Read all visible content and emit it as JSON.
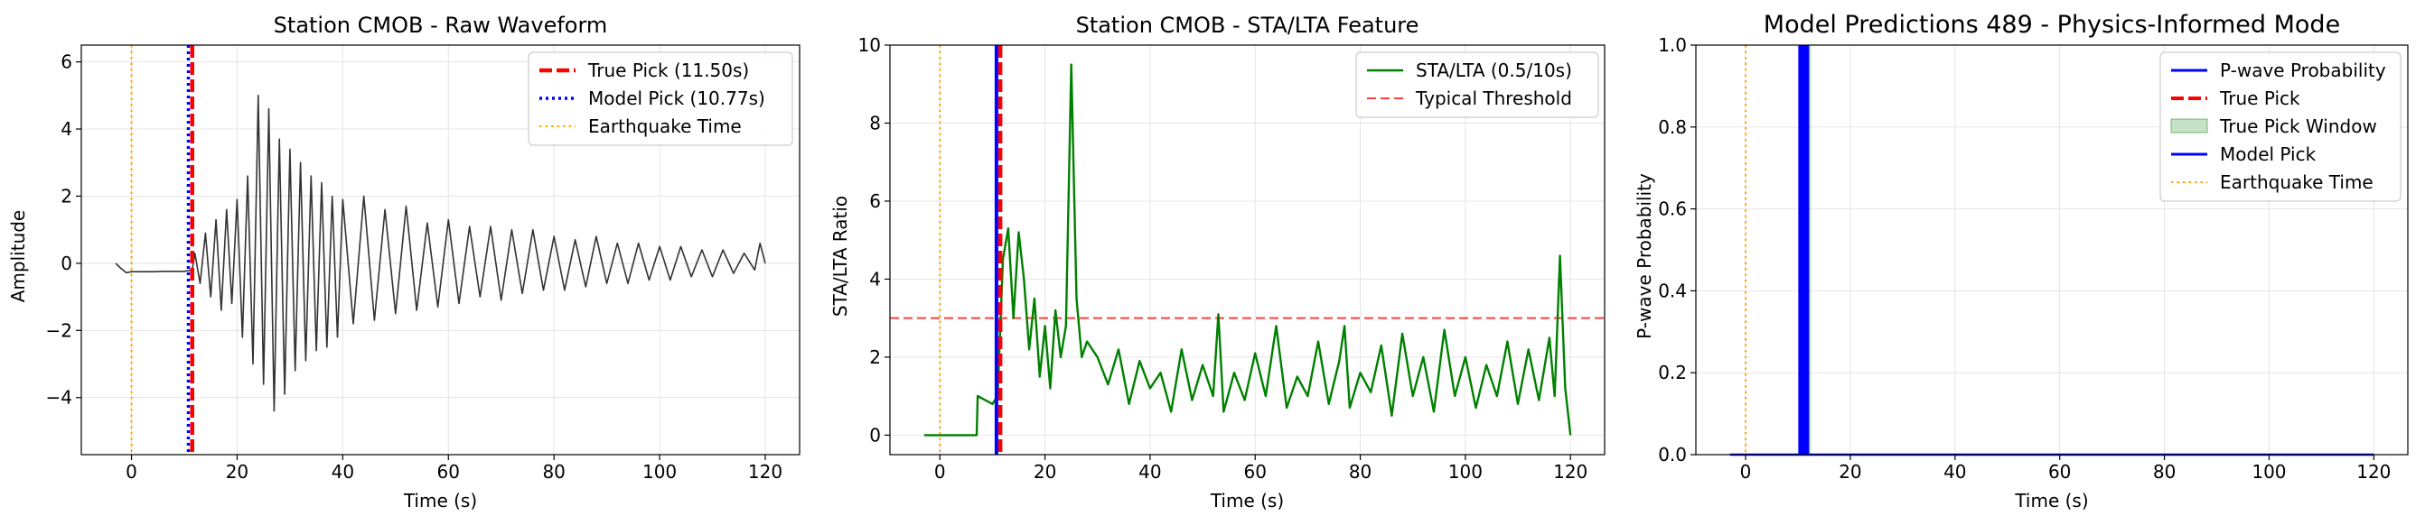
{
  "colors": {
    "waveform": "#333333",
    "true_pick": "#ff0000",
    "model_pick": "#0000ff",
    "quake": "#ffa500",
    "sta_lta": "#008000",
    "threshold": "#ff0000",
    "window_fill": "#008000"
  },
  "chart_data": [
    {
      "type": "line",
      "title": "Station CMOB - Raw Waveform",
      "xlabel": "Time (s)",
      "ylabel": "Amplitude",
      "xlim": [
        -9.5,
        126.5
      ],
      "ylim": [
        -5.7,
        6.5
      ],
      "xticks": [
        0,
        20,
        40,
        60,
        80,
        100,
        120
      ],
      "yticks": [
        -4,
        -2,
        0,
        2,
        4,
        6
      ],
      "grid": true,
      "legend": "top-right",
      "series": [
        {
          "name": "waveform",
          "x": [
            -3,
            -2,
            -1,
            0,
            2,
            4,
            6,
            8,
            10,
            11.5,
            12,
            13,
            14,
            15,
            16,
            17,
            18,
            19,
            20,
            21,
            22,
            23,
            24,
            25,
            26,
            27,
            28,
            29,
            30,
            31,
            32,
            33,
            34,
            35,
            36,
            37,
            38,
            39,
            40,
            42,
            44,
            46,
            48,
            50,
            52,
            54,
            56,
            58,
            60,
            62,
            64,
            66,
            68,
            70,
            72,
            74,
            76,
            78,
            80,
            82,
            84,
            86,
            88,
            90,
            92,
            94,
            96,
            98,
            100,
            102,
            104,
            106,
            108,
            110,
            112,
            114,
            116,
            118,
            119,
            120
          ],
          "values": [
            0,
            -0.15,
            -0.28,
            -0.25,
            -0.25,
            -0.25,
            -0.24,
            -0.24,
            -0.24,
            -0.2,
            0.3,
            -0.6,
            0.9,
            -1.0,
            1.3,
            -1.4,
            1.6,
            -1.2,
            1.9,
            -2.2,
            2.6,
            -3.0,
            5.0,
            -3.6,
            4.6,
            -4.4,
            3.7,
            -3.9,
            3.4,
            -3.2,
            3.0,
            -2.9,
            2.6,
            -2.6,
            2.4,
            -2.5,
            2.0,
            -2.2,
            1.9,
            -1.8,
            2.0,
            -1.7,
            1.6,
            -1.5,
            1.7,
            -1.4,
            1.2,
            -1.3,
            1.3,
            -1.2,
            1.1,
            -1.0,
            1.1,
            -1.1,
            1.0,
            -0.9,
            1.0,
            -0.8,
            0.8,
            -0.8,
            0.7,
            -0.7,
            0.8,
            -0.6,
            0.6,
            -0.6,
            0.6,
            -0.5,
            0.5,
            -0.5,
            0.5,
            -0.4,
            0.4,
            -0.4,
            0.4,
            -0.3,
            0.3,
            -0.2,
            0.6,
            0.0
          ]
        }
      ],
      "vlines": [
        {
          "name": "True Pick (11.50s)",
          "x": 11.5,
          "style": "dashed"
        },
        {
          "name": "Model Pick (10.77s)",
          "x": 10.77,
          "style": "dotted"
        },
        {
          "name": "Earthquake Time",
          "x": 0,
          "style": "dotted"
        }
      ]
    },
    {
      "type": "line",
      "title": "Station CMOB - STA/LTA Feature",
      "xlabel": "Time (s)",
      "ylabel": "STA/LTA Ratio",
      "xlim": [
        -9.5,
        126.5
      ],
      "ylim": [
        -0.5,
        10
      ],
      "xticks": [
        0,
        20,
        40,
        60,
        80,
        100,
        120
      ],
      "yticks": [
        0,
        2,
        4,
        6,
        8,
        10
      ],
      "grid": true,
      "legend": "top-right",
      "series": [
        {
          "name": "STA/LTA (0.5/10s)",
          "x": [
            -3,
            7,
            7.2,
            10,
            11,
            12,
            13,
            14,
            15,
            16,
            17,
            18,
            19,
            20,
            21,
            22,
            23,
            24,
            25,
            26,
            27,
            28,
            30,
            32,
            34,
            36,
            38,
            40,
            42,
            44,
            46,
            48,
            50,
            52,
            53,
            54,
            56,
            58,
            60,
            62,
            64,
            66,
            68,
            70,
            72,
            74,
            76,
            77,
            78,
            80,
            82,
            84,
            86,
            88,
            90,
            92,
            94,
            96,
            98,
            100,
            102,
            104,
            106,
            108,
            110,
            112,
            114,
            116,
            117,
            118,
            119,
            120
          ],
          "values": [
            0,
            0,
            1.0,
            0.8,
            1.0,
            4.5,
            5.3,
            3.0,
            5.2,
            4.0,
            2.2,
            3.5,
            1.5,
            2.8,
            1.2,
            3.2,
            2.0,
            2.8,
            9.5,
            3.5,
            2.0,
            2.4,
            2.0,
            1.3,
            2.2,
            0.8,
            1.9,
            1.2,
            1.6,
            0.6,
            2.2,
            0.9,
            1.8,
            1.0,
            3.1,
            0.6,
            1.6,
            0.9,
            2.1,
            1.0,
            2.8,
            0.7,
            1.5,
            1.0,
            2.4,
            0.8,
            1.9,
            2.8,
            0.7,
            1.6,
            1.1,
            2.3,
            0.5,
            2.6,
            1.0,
            2.0,
            0.6,
            2.7,
            1.0,
            2.0,
            0.7,
            1.8,
            1.0,
            2.4,
            0.8,
            2.2,
            0.9,
            2.5,
            1.0,
            4.6,
            1.2,
            0.0
          ]
        }
      ],
      "hlines": [
        {
          "name": "Typical Threshold",
          "y": 3.0,
          "style": "dashed"
        }
      ],
      "vlines": [
        {
          "x": 11.5,
          "style": "dashed"
        },
        {
          "x": 10.77,
          "style": "solid"
        },
        {
          "x": 0,
          "style": "dotted"
        }
      ]
    },
    {
      "type": "line",
      "title": "Model Predictions 489 - Physics-Informed Mode",
      "xlabel": "Time (s)",
      "ylabel": "P-wave Probability",
      "xlim": [
        -9.5,
        126.5
      ],
      "ylim": [
        0,
        1
      ],
      "xticks": [
        0,
        20,
        40,
        60,
        80,
        100,
        120
      ],
      "yticks": [
        0.0,
        0.2,
        0.4,
        0.6,
        0.8,
        1.0
      ],
      "grid": true,
      "legend": "top-right",
      "series": [
        {
          "name": "P-wave Probability",
          "x": [
            -3,
            120
          ],
          "values": [
            0.0,
            0.0
          ]
        }
      ],
      "legend_entries": [
        "P-wave Probability",
        "True Pick",
        "True Pick Window",
        "Model Pick",
        "Earthquake Time"
      ],
      "span": {
        "name": "True Pick Window",
        "x0": 10.5,
        "x1": 12.5
      },
      "vlines": [
        {
          "name": "True Pick",
          "x": 11.5,
          "style": "dashed"
        },
        {
          "name": "Model Pick",
          "x": 10.77,
          "style": "solid"
        },
        {
          "name": "Earthquake Time",
          "x": 0,
          "style": "dotted"
        }
      ]
    }
  ]
}
